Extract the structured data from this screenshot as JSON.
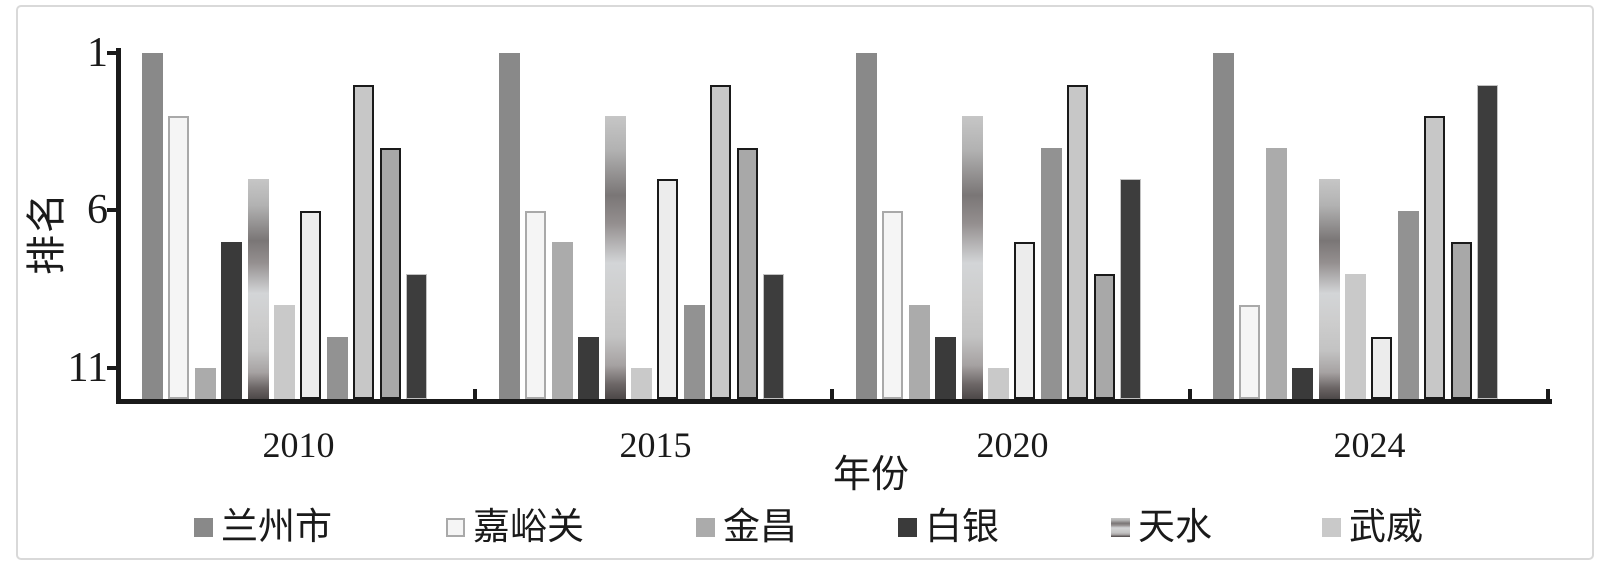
{
  "chart_data": {
    "type": "bar",
    "xlabel": "年份",
    "ylabel": "排名",
    "categories": [
      "2010",
      "2015",
      "2020",
      "2024"
    ],
    "y_axis": {
      "tick_labels": [
        "1",
        "6",
        "11"
      ],
      "tick_values": [
        1,
        6,
        11
      ],
      "inverted": true,
      "range": [
        1,
        12
      ],
      "note": "rank axis, 1 = best at top; bars rise from baseline below rank 11"
    },
    "legend": {
      "position": "bottom",
      "entries": [
        "兰州市",
        "嘉峪关",
        "金昌",
        "白银",
        "天水",
        "武威"
      ]
    },
    "series": [
      {
        "name": "兰州市",
        "fill": "#898989",
        "border": null,
        "border_px": 0,
        "values": [
          1,
          1,
          1,
          1
        ]
      },
      {
        "name": "嘉峪关",
        "fill": "#f5f5f5",
        "border": "#a9a9a9",
        "border_px": 2.5,
        "values": [
          3,
          6,
          6,
          9
        ]
      },
      {
        "name": "金昌",
        "fill": "#ababab",
        "border": null,
        "border_px": 0,
        "values": [
          11,
          7,
          9,
          4
        ]
      },
      {
        "name": "白银",
        "fill": "#3a3a3a",
        "border": null,
        "border_px": 0,
        "values": [
          7,
          10,
          10,
          11
        ]
      },
      {
        "name": "天水",
        "fill": "gradient",
        "border": null,
        "border_px": 0,
        "values": [
          5,
          3,
          3,
          5
        ],
        "gradient_stops": [
          [
            "#c6c6c6",
            0
          ],
          [
            "#b2b2b2",
            12
          ],
          [
            "#7a7676",
            28
          ],
          [
            "#948f8f",
            38
          ],
          [
            "#d3d5d7",
            52
          ],
          [
            "#cdcdcd",
            65
          ],
          [
            "#c3c3c3",
            78
          ],
          [
            "#a6a2a2",
            88
          ],
          [
            "#6b6565",
            95
          ],
          [
            "#4d4848",
            100
          ]
        ]
      },
      {
        "name": "武威",
        "fill": "#c9c9c9",
        "border": null,
        "border_px": 0,
        "values": [
          9,
          11,
          11,
          8
        ]
      },
      {
        "name": "",
        "fill": "#ececec",
        "border": "#1a1a1a",
        "border_px": 2.5,
        "values": [
          6,
          5,
          7,
          10
        ]
      },
      {
        "name": "",
        "fill": "#929292",
        "border": null,
        "border_px": 0,
        "values": [
          10,
          9,
          4,
          6
        ]
      },
      {
        "name": "",
        "fill": "#c7c7c7",
        "border": "#1a1a1a",
        "border_px": 2.5,
        "values": [
          2,
          2,
          2,
          3
        ]
      },
      {
        "name": "",
        "fill": "#a8a8a8",
        "border": "#1a1a1a",
        "border_px": 2.5,
        "values": [
          4,
          4,
          8,
          7
        ]
      },
      {
        "name": "",
        "fill": "#3d3d3d",
        "border": "#c2c2c2",
        "border_px": 1,
        "values": [
          8,
          8,
          5,
          2
        ]
      }
    ],
    "colors": {
      "axis": "#1a1a1a",
      "text": "#1a1a1a",
      "frame_border": "#d9d9d9",
      "background": "#ffffff"
    }
  }
}
